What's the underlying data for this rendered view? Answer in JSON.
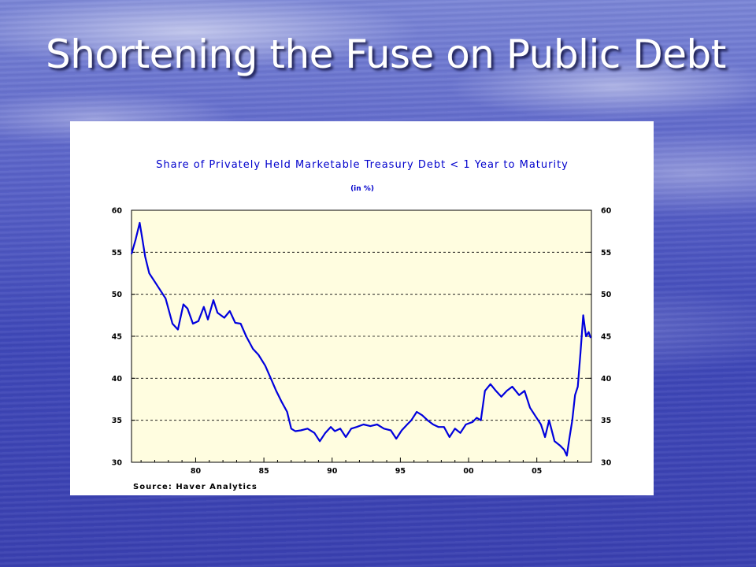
{
  "slide": {
    "title": "Shortening the Fuse on Public Debt"
  },
  "chart_data": {
    "type": "line",
    "title": "Share of Privately Held Marketable Treasury Debt < 1 Year to Maturity",
    "subtitle": "(in %)",
    "source": "Source: Haver Analytics",
    "xlabel": "",
    "ylabel": "",
    "xlim": [
      1975.3,
      2009.0
    ],
    "ylim": [
      30,
      60
    ],
    "x_ticks": [
      "80",
      "85",
      "90",
      "95",
      "00",
      "05"
    ],
    "x_tick_values": [
      1980,
      1985,
      1990,
      1995,
      2000,
      2005
    ],
    "y_ticks_left": [
      "60",
      "55",
      "50",
      "45",
      "40",
      "35",
      "30"
    ],
    "y_ticks_right": [
      "60",
      "55",
      "50",
      "45",
      "40",
      "35",
      "30"
    ],
    "y_tick_values": [
      60,
      55,
      50,
      45,
      40,
      35,
      30
    ],
    "grid": "horizontal dashed",
    "plot_background": "#fffde0",
    "series_color": "#0000dd",
    "title_color": "#0000cc",
    "series": [
      {
        "x": [
          1975.3,
          1975.6,
          1975.9,
          1976.1,
          1976.3,
          1976.6,
          1977.0,
          1977.4,
          1977.8,
          1978.3,
          1978.7,
          1979.1,
          1979.4,
          1979.8,
          1980.2,
          1980.6,
          1980.9,
          1981.3,
          1981.6,
          1982.1,
          1982.5,
          1982.9,
          1983.3,
          1983.7,
          1984.2,
          1984.6,
          1985.1,
          1985.5,
          1985.9,
          1986.3,
          1986.7,
          1987.0,
          1987.3,
          1987.7,
          1988.2,
          1988.7,
          1989.1,
          1989.5,
          1989.9,
          1990.2,
          1990.6,
          1991.0,
          1991.4,
          1991.8,
          1992.3,
          1992.8,
          1993.3,
          1993.8,
          1994.3,
          1994.7,
          1995.1,
          1995.5,
          1995.8,
          1996.2,
          1996.6,
          1997.0,
          1997.4,
          1997.8,
          1998.2,
          1998.6,
          1999.0,
          1999.4,
          1999.8,
          2000.3,
          2000.6,
          2000.9,
          2001.2,
          2001.6,
          2002.0,
          2002.4,
          2002.8,
          2003.2,
          2003.7,
          2004.1,
          2004.5,
          2004.9,
          2005.3,
          2005.6,
          2005.9,
          2006.3,
          2006.7,
          2007.0,
          2007.2,
          2007.4,
          2007.6,
          2007.8,
          2008.0,
          2008.2,
          2008.4,
          2008.6,
          2008.8,
          2008.95
        ],
        "values": [
          54.8,
          56.5,
          58.5,
          56.5,
          54.5,
          52.5,
          51.5,
          50.5,
          49.5,
          46.5,
          45.8,
          48.8,
          48.3,
          46.5,
          46.8,
          48.5,
          47.0,
          49.3,
          47.8,
          47.2,
          48.0,
          46.6,
          46.5,
          45.0,
          43.5,
          42.8,
          41.5,
          40.0,
          38.5,
          37.2,
          36.0,
          34.0,
          33.7,
          33.8,
          34.0,
          33.5,
          32.5,
          33.5,
          34.2,
          33.7,
          34.0,
          33.0,
          34.0,
          34.2,
          34.5,
          34.3,
          34.5,
          34.0,
          33.8,
          32.8,
          33.8,
          34.5,
          35.0,
          36.0,
          35.6,
          35.0,
          34.5,
          34.2,
          34.2,
          33.0,
          34.0,
          33.5,
          34.5,
          34.8,
          35.3,
          35.0,
          38.5,
          39.3,
          38.5,
          37.8,
          38.5,
          39.0,
          38.0,
          38.5,
          36.5,
          35.5,
          34.5,
          33.0,
          35.0,
          32.5,
          32.0,
          31.5,
          30.8,
          33.0,
          35.0,
          38.0,
          39.0,
          43.0,
          47.5,
          45.0,
          45.5,
          44.8
        ]
      }
    ]
  }
}
